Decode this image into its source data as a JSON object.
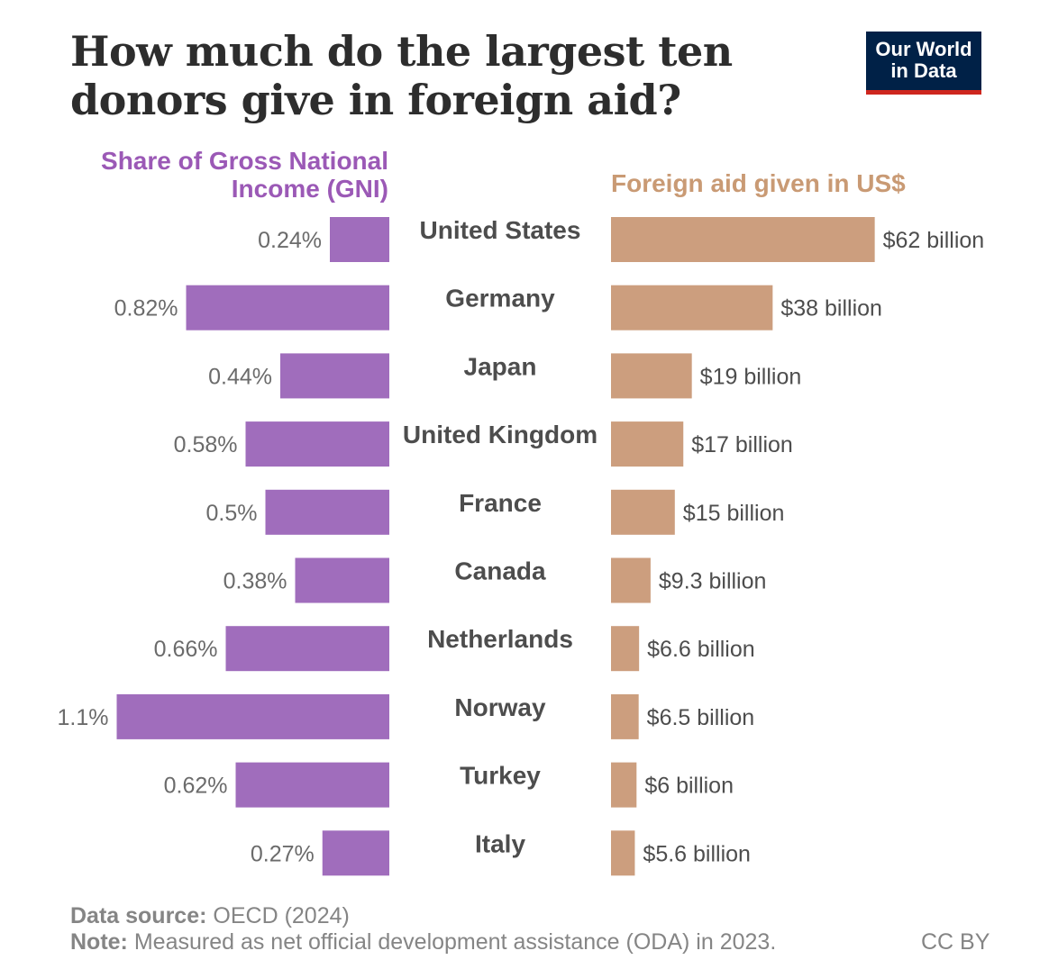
{
  "title": "How much do the largest ten donors give in foreign aid?",
  "logo": {
    "line1": "Our World",
    "line2": "in Data"
  },
  "left_panel_title": {
    "line1": "Share of Gross National",
    "line2": "Income (GNI)"
  },
  "right_panel_title": "Foreign aid given in US$",
  "colors": {
    "left_bar": "#a06dbc",
    "right_bar": "#cc9e7e",
    "logo_bg": "#002147",
    "logo_accent": "#ce261e"
  },
  "chart_data": {
    "type": "bar",
    "categories": [
      "United States",
      "Germany",
      "Japan",
      "United Kingdom",
      "France",
      "Canada",
      "Netherlands",
      "Norway",
      "Turkey",
      "Italy"
    ],
    "series": [
      {
        "name": "Share of Gross National Income (GNI)",
        "values": [
          0.24,
          0.82,
          0.44,
          0.58,
          0.5,
          0.38,
          0.66,
          1.1,
          0.62,
          0.27
        ],
        "labels": [
          "0.24%",
          "0.82%",
          "0.44%",
          "0.58%",
          "0.5%",
          "0.38%",
          "0.66%",
          "1.1%",
          "0.62%",
          "0.27%"
        ]
      },
      {
        "name": "Foreign aid given in US$",
        "values": [
          62,
          38,
          19,
          17,
          15,
          9.3,
          6.6,
          6.5,
          6,
          5.6
        ],
        "labels": [
          "$62 billion",
          "$38 billion",
          "$19 billion",
          "$17 billion",
          "$15 billion",
          "$9.3 billion",
          "$6.6 billion",
          "$6.5 billion",
          "$6 billion",
          "$5.6 billion"
        ]
      }
    ],
    "orientation": "horizontal",
    "grid": false,
    "legend": "none"
  },
  "footer": {
    "source_label": "Data source:",
    "source_text": "OECD (2024)",
    "note_label": "Note:",
    "note_text": "Measured as net official development assistance (ODA) in 2023.",
    "license": "CC BY"
  }
}
